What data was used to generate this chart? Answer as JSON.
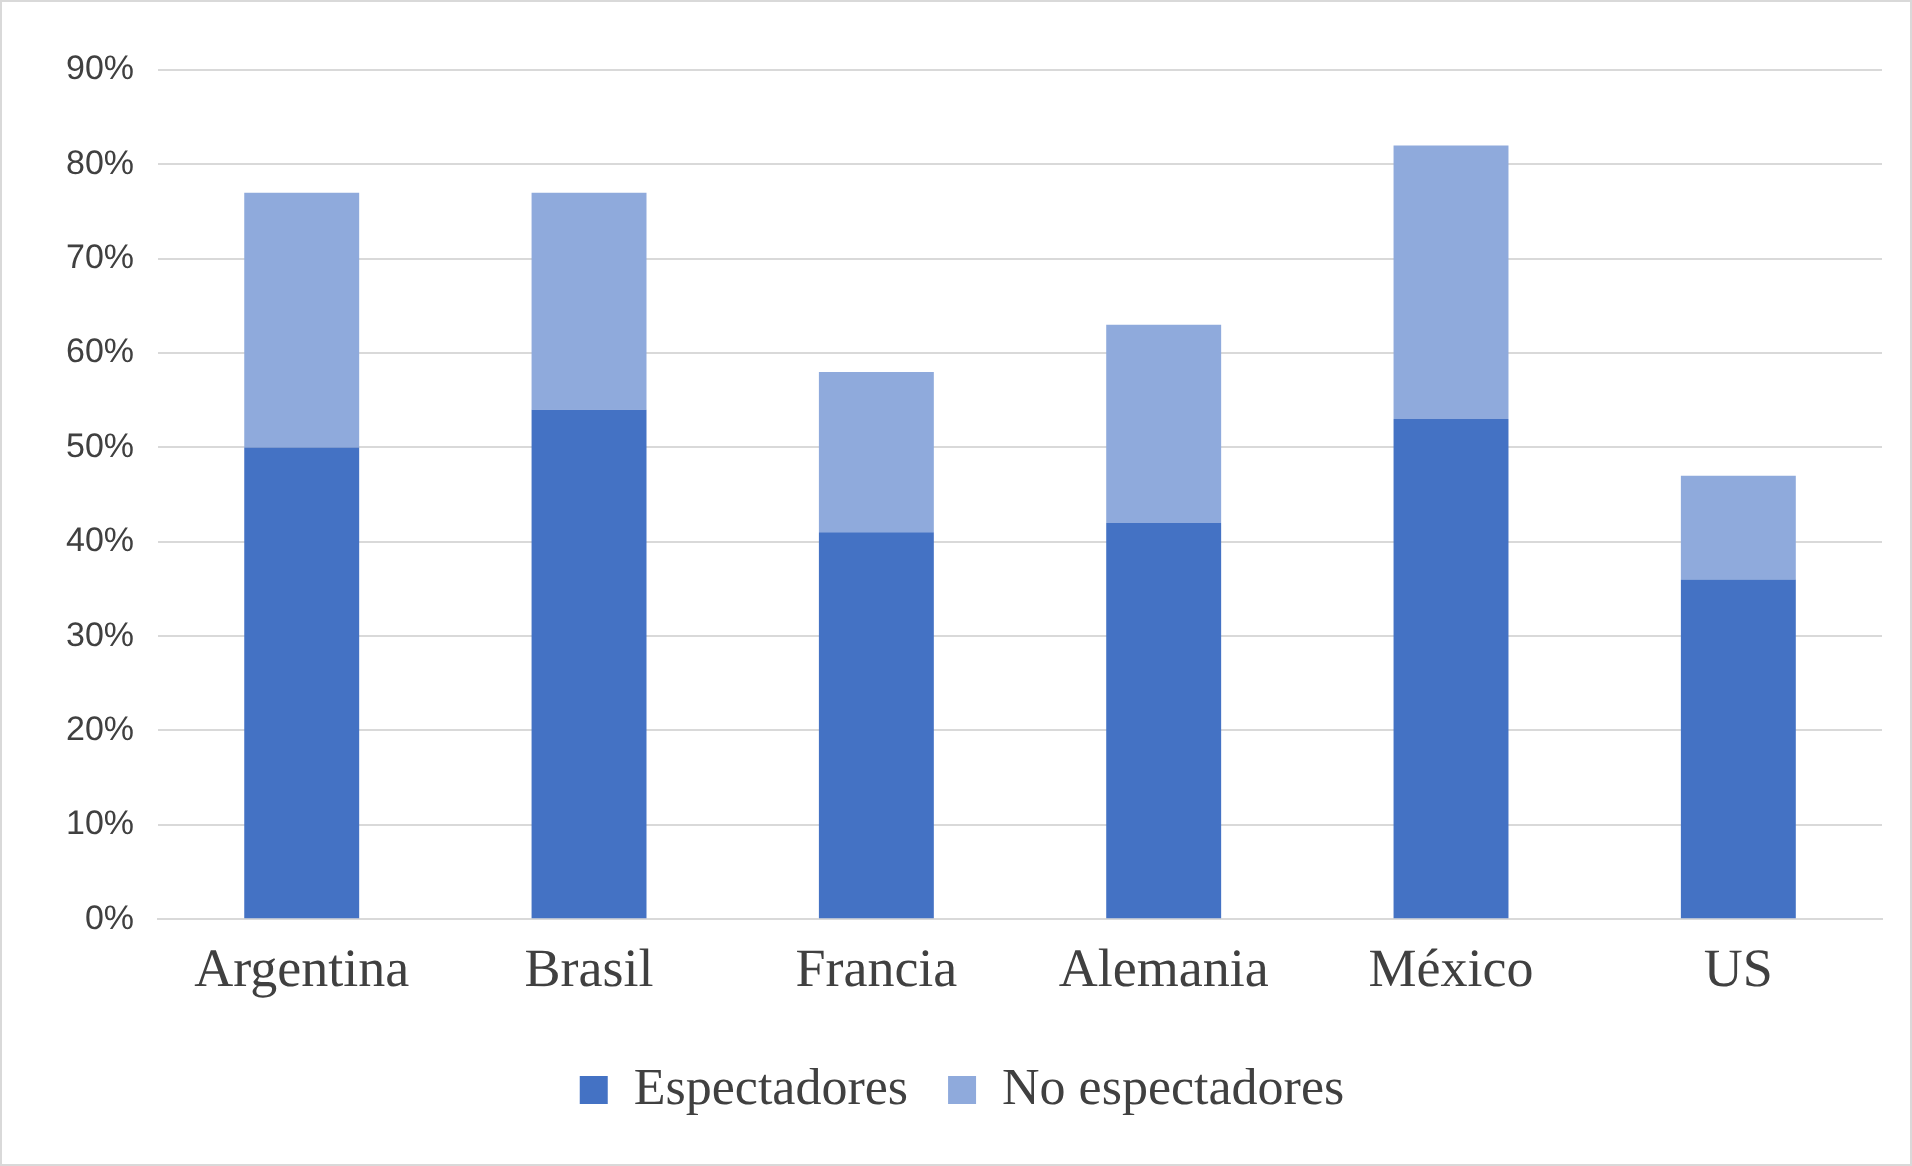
{
  "chart_data": {
    "type": "bar",
    "stacked": true,
    "categories": [
      "Argentina",
      "Brasil",
      "Francia",
      "Alemania",
      "México",
      "US"
    ],
    "series": [
      {
        "name": "Espectadores",
        "color": "#4472c4",
        "values": [
          50,
          54,
          41,
          42,
          53,
          36
        ]
      },
      {
        "name": "No espectadores",
        "color": "#8faadc",
        "values": [
          27,
          23,
          17,
          21,
          29,
          11
        ]
      }
    ],
    "ylim": [
      0,
      90
    ],
    "yticks": [
      {
        "value": 0,
        "label": "0%"
      },
      {
        "value": 10,
        "label": "10%"
      },
      {
        "value": 20,
        "label": "20%"
      },
      {
        "value": 30,
        "label": "30%"
      },
      {
        "value": 40,
        "label": "40%"
      },
      {
        "value": 50,
        "label": "50%"
      },
      {
        "value": 60,
        "label": "60%"
      },
      {
        "value": 70,
        "label": "70%"
      },
      {
        "value": 80,
        "label": "80%"
      },
      {
        "value": 90,
        "label": "90%"
      }
    ],
    "grid": "y",
    "legend": "bottom"
  }
}
